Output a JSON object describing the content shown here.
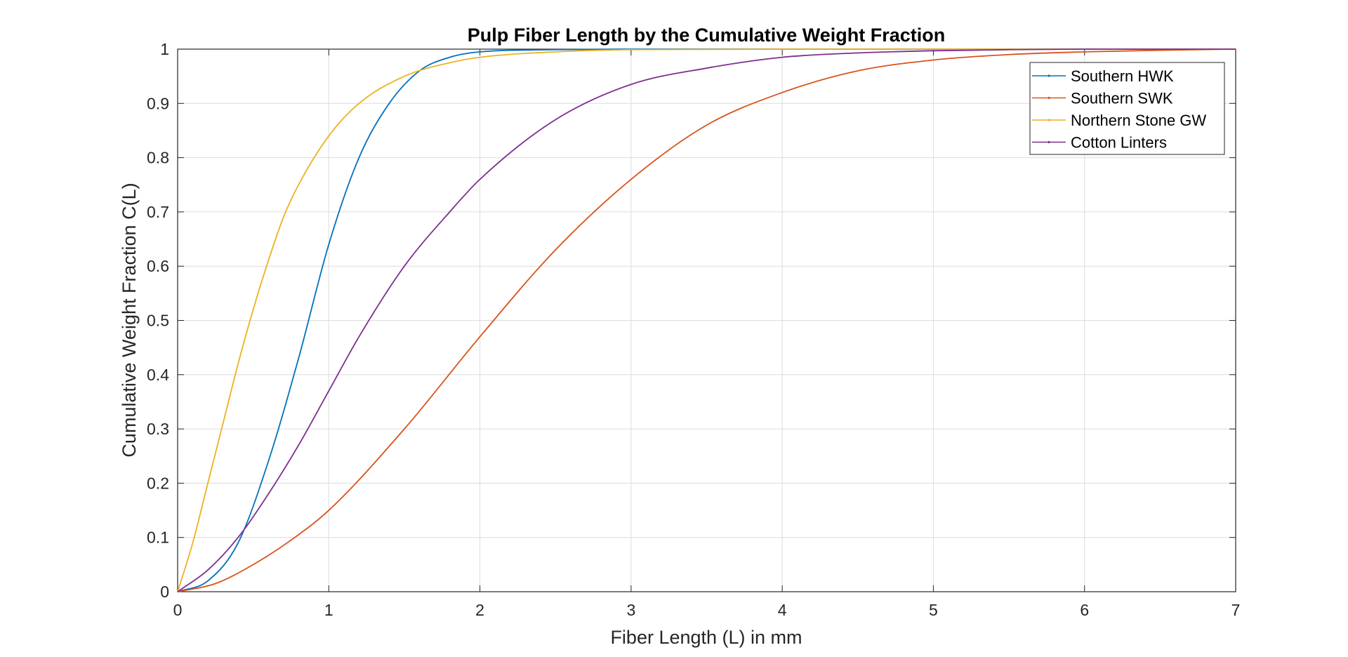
{
  "chart_data": {
    "type": "line",
    "title": "Pulp Fiber Length by the Cumulative Weight Fraction",
    "xlabel": "Fiber Length (L) in mm",
    "ylabel": "Cumulative Weight Fraction C(L)",
    "xlim": [
      0,
      7
    ],
    "ylim": [
      0,
      1
    ],
    "xticks": [
      "0",
      "1",
      "2",
      "3",
      "4",
      "5",
      "6",
      "7"
    ],
    "yticks": [
      "0",
      "0.1",
      "0.2",
      "0.3",
      "0.4",
      "0.5",
      "0.6",
      "0.7",
      "0.8",
      "0.9",
      "1"
    ],
    "grid": true,
    "legend_position": "top-right",
    "series": [
      {
        "name": "Southern HWK",
        "color": "#0072BD",
        "x": [
          0,
          0.2,
          0.4,
          0.6,
          0.8,
          1.0,
          1.2,
          1.4,
          1.6,
          1.8,
          2.0,
          2.5,
          3,
          4,
          5,
          6,
          7
        ],
        "y": [
          0,
          0.02,
          0.09,
          0.24,
          0.43,
          0.64,
          0.8,
          0.9,
          0.96,
          0.985,
          0.995,
          0.999,
          1.0,
          1.0,
          1.0,
          1.0,
          1.0
        ]
      },
      {
        "name": "Southern SWK",
        "color": "#D95319",
        "x": [
          0,
          0.25,
          0.5,
          0.75,
          1.0,
          1.5,
          2.0,
          2.5,
          3.0,
          3.5,
          4.0,
          4.5,
          5.0,
          5.5,
          6.0,
          6.5,
          7.0
        ],
        "y": [
          0,
          0.015,
          0.05,
          0.095,
          0.15,
          0.3,
          0.47,
          0.63,
          0.76,
          0.86,
          0.92,
          0.96,
          0.98,
          0.99,
          0.995,
          0.998,
          1.0
        ]
      },
      {
        "name": "Northern Stone GW",
        "color": "#EDB120",
        "x": [
          0,
          0.1,
          0.2,
          0.3,
          0.4,
          0.5,
          0.6,
          0.7,
          0.8,
          1.0,
          1.2,
          1.5,
          1.8,
          2.0,
          2.5,
          3,
          4,
          5,
          6,
          7
        ],
        "y": [
          0,
          0.09,
          0.2,
          0.31,
          0.42,
          0.52,
          0.61,
          0.69,
          0.75,
          0.84,
          0.9,
          0.95,
          0.975,
          0.985,
          0.995,
          0.999,
          1.0,
          1.0,
          1.0,
          1.0
        ]
      },
      {
        "name": "Cotton Linters",
        "color": "#7E2F8E",
        "x": [
          0,
          0.2,
          0.4,
          0.6,
          0.8,
          1.0,
          1.2,
          1.5,
          1.8,
          2.0,
          2.5,
          3.0,
          3.5,
          4.0,
          4.5,
          5.0,
          5.5,
          6.0,
          7.0
        ],
        "y": [
          0,
          0.04,
          0.1,
          0.18,
          0.27,
          0.37,
          0.47,
          0.6,
          0.7,
          0.76,
          0.87,
          0.935,
          0.965,
          0.985,
          0.993,
          0.997,
          0.999,
          1.0,
          1.0
        ]
      }
    ]
  }
}
